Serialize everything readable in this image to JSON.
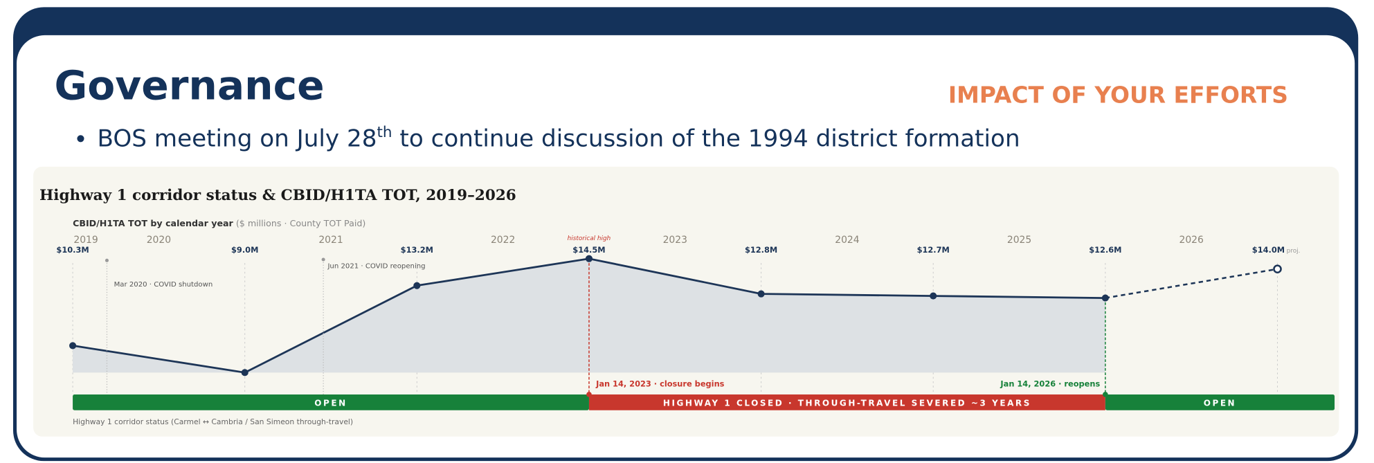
{
  "slide": {
    "title": "Governance",
    "tagline": "IMPACT OF YOUR EFFORTS",
    "bullet": {
      "before": "BOS meeting on July 28",
      "sup": "th",
      "after": " to continue discussion of the 1994 district formation"
    }
  },
  "chart_data": {
    "type": "line",
    "title": "Highway 1 corridor status & CBID/H1TA TOT, 2019–2026",
    "subtitle": "CBID/H1TA TOT by calendar year",
    "subtitle_note": "($ millions · County TOT Paid)",
    "categories": [
      "2019",
      "2020",
      "2021",
      "2022",
      "2023",
      "2024",
      "2025",
      "2026"
    ],
    "values": [
      10.3,
      9.0,
      13.2,
      14.5,
      12.8,
      12.7,
      12.6,
      14.0
    ],
    "value_labels": [
      "$10.3M",
      "$9.0M",
      "$13.2M",
      "$14.5M",
      "$12.8M",
      "$12.7M",
      "$12.6M",
      "$14.0M"
    ],
    "projected_label": "proj.",
    "projected_index": 7,
    "color": "#1d3557",
    "area_color": "#dde1e4",
    "ylim": [
      9,
      14.5
    ],
    "annotations": {
      "high": "historical high",
      "shutdown": "Mar 2020 · COVID shutdown",
      "reopening": "Jun 2021 · COVID reopening",
      "closure": "Jan 14, 2023 · closure begins",
      "reopens": "Jan 14, 2026 · reopens"
    },
    "status": [
      {
        "label": "OPEN",
        "color": "#17813a"
      },
      {
        "label": "HIGHWAY 1 CLOSED · THROUGH-TRAVEL SEVERED ~3 YEARS",
        "color": "#c8372d"
      },
      {
        "label": "OPEN",
        "color": "#17813a"
      }
    ],
    "status_caption": "Highway 1 corridor status (Carmel ↔ Cambria / San Simeon through-travel)"
  }
}
